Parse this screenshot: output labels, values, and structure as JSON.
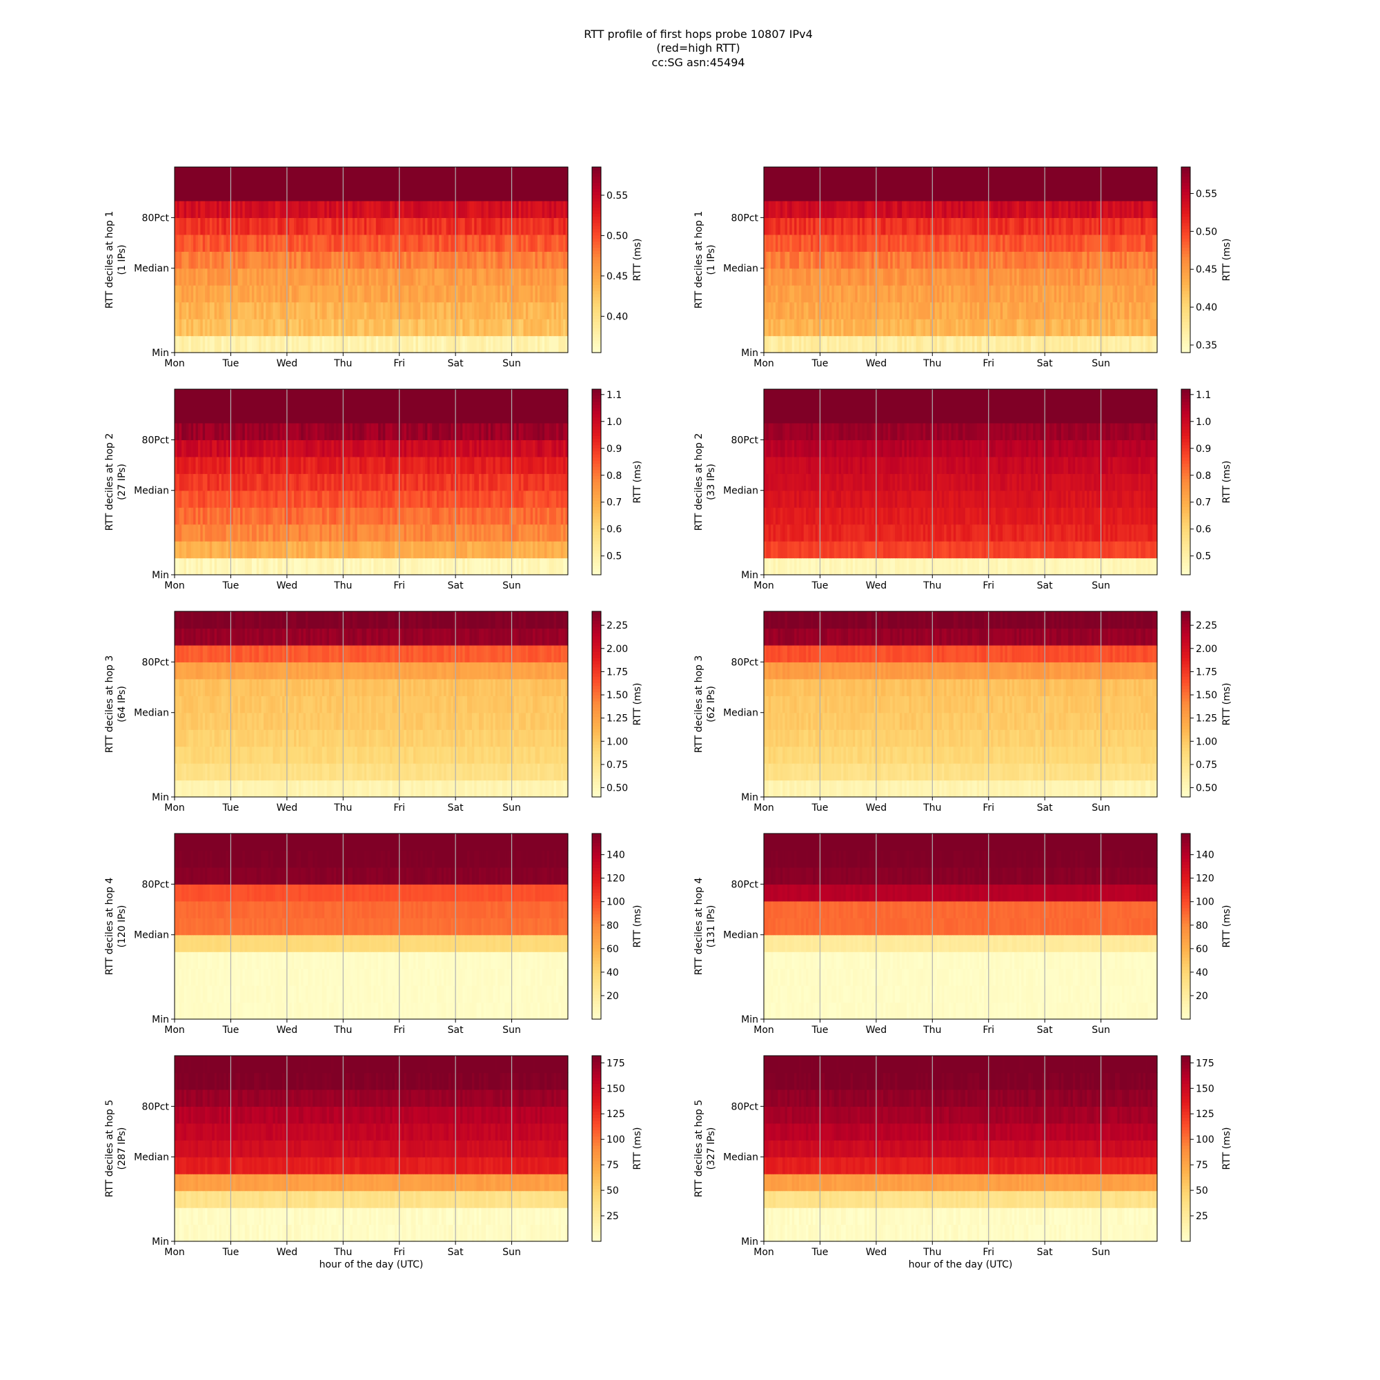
{
  "title_lines": [
    "RTT profile of first hops probe 10807 IPv4",
    "(red=high RTT)",
    "cc:SG asn:45494"
  ],
  "colormap": [
    "#ffffcc",
    "#ffeda0",
    "#fed976",
    "#feb24c",
    "#fd8d3c",
    "#fc4e2a",
    "#e31a1c",
    "#bd0026",
    "#800026"
  ],
  "x_day_labels": [
    "Mon",
    "Tue",
    "Wed",
    "Thu",
    "Fri",
    "Sat",
    "Sun"
  ],
  "y_tick_labels": [
    "Min",
    "Median",
    "80Pct"
  ],
  "xlabel": "hour of the day (UTC)",
  "colorbar_label": "RTT (ms)",
  "chart_data": [
    {
      "type": "heatmap",
      "panel": "left",
      "hop": 1,
      "ylabel": "RTT deciles at hop 1",
      "ylabel2": "(1 IPs)",
      "cbar_range": [
        0.355,
        0.585
      ],
      "cbar_ticks": [
        0.4,
        0.45,
        0.5,
        0.55
      ],
      "cbar_tick_labels": [
        "0.40",
        "0.45",
        "0.50",
        "0.55"
      ],
      "decile_values": [
        0.375,
        0.43,
        0.44,
        0.45,
        0.46,
        0.475,
        0.495,
        0.515,
        0.54,
        0.6,
        0.61
      ],
      "noise": 0.012
    },
    {
      "type": "heatmap",
      "panel": "right",
      "hop": 1,
      "ylabel": "RTT deciles at hop 1",
      "ylabel2": "(1 IPs)",
      "cbar_range": [
        0.34,
        0.585
      ],
      "cbar_ticks": [
        0.35,
        0.4,
        0.45,
        0.5,
        0.55
      ],
      "cbar_tick_labels": [
        "0.35",
        "0.40",
        "0.45",
        "0.50",
        "0.55"
      ],
      "decile_values": [
        0.37,
        0.43,
        0.44,
        0.445,
        0.455,
        0.47,
        0.49,
        0.51,
        0.54,
        0.6,
        0.61
      ],
      "noise": 0.012
    },
    {
      "type": "heatmap",
      "panel": "left",
      "hop": 2,
      "ylabel": "RTT deciles at hop 2",
      "ylabel2": "(27 IPs)",
      "cbar_range": [
        0.43,
        1.12
      ],
      "cbar_ticks": [
        0.5,
        0.6,
        0.7,
        0.8,
        0.9,
        1.0,
        1.1
      ],
      "cbar_tick_labels": [
        "0.5",
        "0.6",
        "0.7",
        "0.8",
        "0.9",
        "1.0",
        "1.1"
      ],
      "decile_values": [
        0.47,
        0.7,
        0.78,
        0.82,
        0.86,
        0.9,
        0.94,
        1.0,
        1.08,
        1.15,
        1.16
      ],
      "noise": 0.03
    },
    {
      "type": "heatmap",
      "panel": "right",
      "hop": 2,
      "ylabel": "RTT deciles at hop 2",
      "ylabel2": "(33 IPs)",
      "cbar_range": [
        0.43,
        1.12
      ],
      "cbar_ticks": [
        0.5,
        0.6,
        0.7,
        0.8,
        0.9,
        1.0,
        1.1
      ],
      "cbar_tick_labels": [
        "0.5",
        "0.6",
        "0.7",
        "0.8",
        "0.9",
        "1.0",
        "1.1"
      ],
      "decile_values": [
        0.47,
        0.88,
        0.93,
        0.95,
        0.97,
        0.99,
        1.01,
        1.04,
        1.08,
        1.15,
        1.16
      ],
      "noise": 0.02
    },
    {
      "type": "heatmap",
      "panel": "left",
      "hop": 3,
      "ylabel": "RTT deciles at hop 3",
      "ylabel2": "(64 IPs)",
      "cbar_range": [
        0.4,
        2.4
      ],
      "cbar_ticks": [
        0.5,
        0.75,
        1.0,
        1.25,
        1.5,
        1.75,
        2.0,
        2.25
      ],
      "cbar_tick_labels": [
        "0.50",
        "0.75",
        "1.00",
        "1.25",
        "1.50",
        "1.75",
        "2.00",
        "2.25"
      ],
      "decile_values": [
        0.55,
        0.8,
        0.9,
        0.95,
        1.0,
        1.02,
        1.05,
        1.25,
        1.6,
        2.3,
        2.4
      ],
      "noise": 0.05
    },
    {
      "type": "heatmap",
      "panel": "right",
      "hop": 3,
      "ylabel": "RTT deciles at hop 3",
      "ylabel2": "(62 IPs)",
      "cbar_range": [
        0.4,
        2.4
      ],
      "cbar_ticks": [
        0.5,
        0.75,
        1.0,
        1.25,
        1.5,
        1.75,
        2.0,
        2.25
      ],
      "cbar_tick_labels": [
        "0.50",
        "0.75",
        "1.00",
        "1.25",
        "1.50",
        "1.75",
        "2.00",
        "2.25"
      ],
      "decile_values": [
        0.55,
        0.8,
        0.9,
        0.95,
        1.0,
        1.02,
        1.05,
        1.3,
        1.65,
        2.3,
        2.4
      ],
      "noise": 0.05
    },
    {
      "type": "heatmap",
      "panel": "left",
      "hop": 4,
      "ylabel": "RTT deciles at hop 4",
      "ylabel2": "(120 IPs)",
      "cbar_range": [
        0,
        158
      ],
      "cbar_ticks": [
        20,
        40,
        60,
        80,
        100,
        120,
        140
      ],
      "cbar_tick_labels": [
        "20",
        "40",
        "60",
        "80",
        "100",
        "120",
        "140"
      ],
      "decile_values": [
        3,
        3,
        3,
        3,
        38,
        88,
        90,
        98,
        155,
        158,
        160
      ],
      "noise": 2
    },
    {
      "type": "heatmap",
      "panel": "right",
      "hop": 4,
      "ylabel": "RTT deciles at hop 4",
      "ylabel2": "(131 IPs)",
      "cbar_range": [
        0,
        158
      ],
      "cbar_ticks": [
        20,
        40,
        60,
        80,
        100,
        120,
        140
      ],
      "cbar_tick_labels": [
        "20",
        "40",
        "60",
        "80",
        "100",
        "120",
        "140"
      ],
      "decile_values": [
        3,
        3,
        3,
        3,
        22,
        90,
        90,
        140,
        155,
        158,
        160
      ],
      "noise": 2
    },
    {
      "type": "heatmap",
      "panel": "left",
      "hop": 5,
      "ylabel": "RTT deciles at hop 5",
      "ylabel2": "(287 IPs)",
      "cbar_range": [
        0,
        182
      ],
      "cbar_ticks": [
        25,
        50,
        75,
        100,
        125,
        150,
        175
      ],
      "cbar_tick_labels": [
        "25",
        "50",
        "75",
        "100",
        "125",
        "150",
        "175"
      ],
      "decile_values": [
        4,
        4,
        35,
        80,
        135,
        148,
        155,
        162,
        172,
        182,
        185
      ],
      "noise": 4
    },
    {
      "type": "heatmap",
      "panel": "right",
      "hop": 5,
      "ylabel": "RTT deciles at hop 5",
      "ylabel2": "(327 IPs)",
      "cbar_range": [
        0,
        182
      ],
      "cbar_ticks": [
        25,
        50,
        75,
        100,
        125,
        150,
        175
      ],
      "cbar_tick_labels": [
        "25",
        "50",
        "75",
        "100",
        "125",
        "150",
        "175"
      ],
      "decile_values": [
        4,
        4,
        35,
        80,
        135,
        150,
        160,
        168,
        175,
        182,
        185
      ],
      "noise": 4
    }
  ]
}
